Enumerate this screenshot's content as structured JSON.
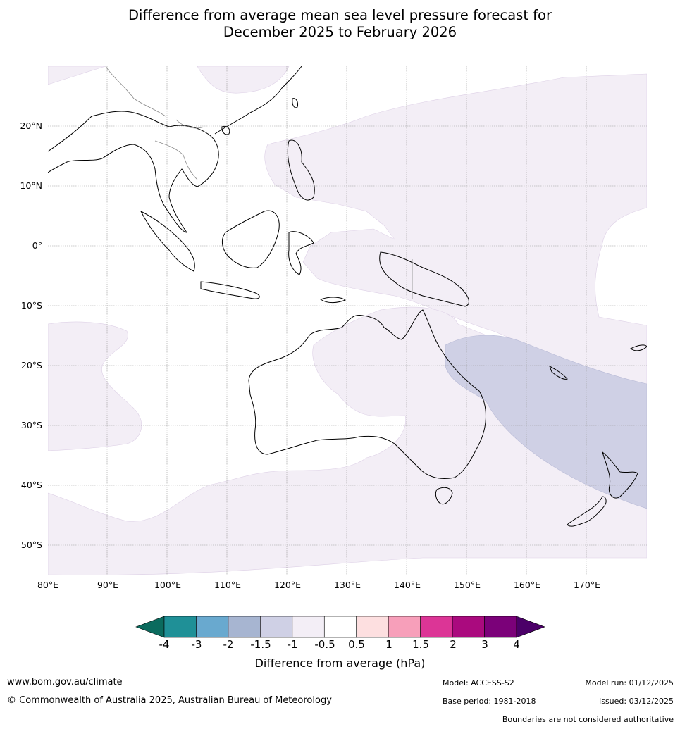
{
  "title_line1": "Difference from average mean sea level pressure forecast for",
  "title_line2": "December 2025 to February 2026",
  "lat_labels": [
    "20°N",
    "10°N",
    "0°",
    "10°S",
    "20°S",
    "30°S",
    "40°S",
    "50°S"
  ],
  "lon_labels": [
    "80°E",
    "90°E",
    "100°E",
    "110°E",
    "120°E",
    "130°E",
    "140°E",
    "150°E",
    "160°E",
    "170°E"
  ],
  "colorbar": {
    "ticks": [
      "-4",
      "-3",
      "-2",
      "-1.5",
      "-1",
      "-0.5",
      "0.5",
      "1",
      "1.5",
      "2",
      "3",
      "4"
    ],
    "colors": [
      "#0b6b5e",
      "#1f9097",
      "#69a9cf",
      "#a7b5d1",
      "#cfd0e5",
      "#f3eef6",
      "#ffffff",
      "#fddfe0",
      "#f79fba",
      "#dc3596",
      "#aa0a7e",
      "#7b0179",
      "#4b0068"
    ],
    "label": "Difference from average (hPa)"
  },
  "footer": {
    "website": "www.bom.gov.au/climate",
    "copyright": "© Commonwealth of Australia 2025, Australian Bureau of Meteorology",
    "model": "Model: ACCESS-S2",
    "base_period": "Base period: 1981-2018",
    "model_run": "Model run: 01/12/2025",
    "issued": "Issued: 03/12/2025",
    "disclaimer": "Boundaries are not considered authoritative"
  }
}
